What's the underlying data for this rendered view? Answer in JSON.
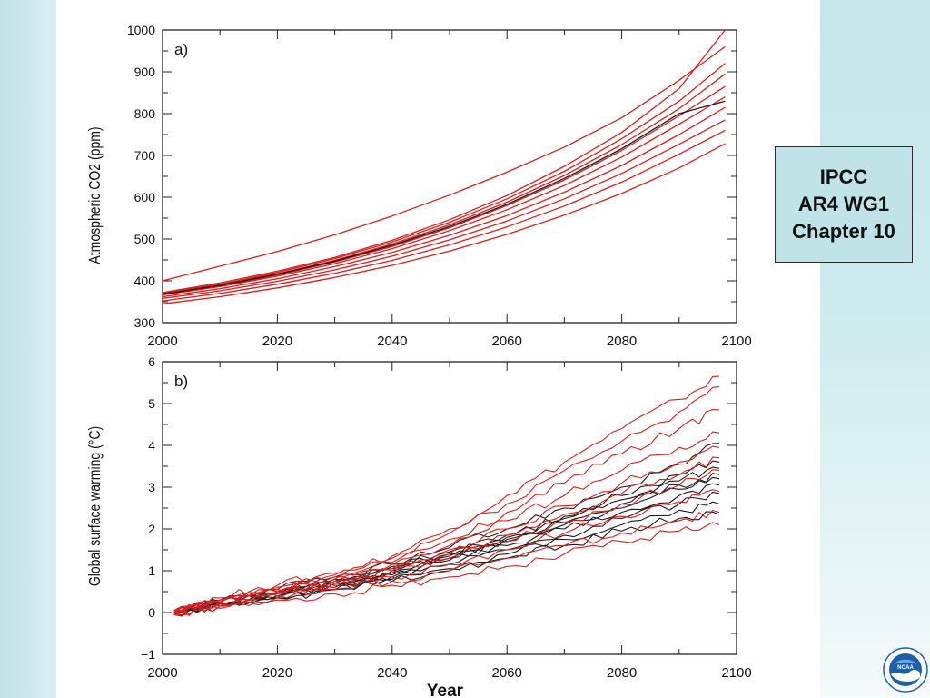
{
  "caption": {
    "line1": "IPCC",
    "line2": "AR4 WG1",
    "line3": "Chapter 10"
  },
  "logo": {
    "text": "NOAA"
  },
  "colors": {
    "red_series": "#d81e1e",
    "black_series": "#1a1a1a",
    "caption_bg": "#bfe3e6"
  },
  "chart_data": [
    {
      "type": "line",
      "panel_label": "a)",
      "ylabel": "Atmospheric CO2 (ppm)",
      "xlabel": "",
      "xlim": [
        2000,
        2100
      ],
      "ylim": [
        300,
        1000
      ],
      "x_ticks": [
        "2000",
        "2020",
        "2040",
        "2060",
        "2080",
        "2100"
      ],
      "y_ticks": [
        "300",
        "400",
        "500",
        "600",
        "700",
        "800",
        "900",
        "1000"
      ],
      "x": [
        2000,
        2010,
        2020,
        2030,
        2040,
        2050,
        2060,
        2070,
        2080,
        2090,
        2098
      ],
      "series": [
        {
          "color": "red",
          "values": [
            400,
            435,
            470,
            510,
            555,
            605,
            660,
            720,
            790,
            880,
            960
          ]
        },
        {
          "color": "red",
          "values": [
            372,
            395,
            423,
            456,
            497,
            546,
            604,
            674,
            755,
            860,
            1000
          ]
        },
        {
          "color": "red",
          "values": [
            370,
            392,
            420,
            453,
            493,
            540,
            596,
            662,
            740,
            830,
            920
          ]
        },
        {
          "color": "red",
          "values": [
            368,
            390,
            417,
            449,
            488,
            534,
            588,
            652,
            726,
            812,
            895
          ]
        },
        {
          "color": "red",
          "values": [
            367,
            388,
            414,
            445,
            482,
            527,
            580,
            641,
            712,
            795,
            865
          ]
        },
        {
          "color": "red",
          "values": [
            366,
            386,
            411,
            441,
            477,
            520,
            570,
            628,
            696,
            775,
            840
          ]
        },
        {
          "color": "red",
          "values": [
            362,
            381,
            405,
            434,
            468,
            509,
            556,
            612,
            676,
            750,
            815
          ]
        },
        {
          "color": "red",
          "values": [
            358,
            376,
            399,
            426,
            459,
            498,
            543,
            596,
            657,
            727,
            785
          ]
        },
        {
          "color": "red",
          "values": [
            352,
            370,
            392,
            418,
            449,
            486,
            529,
            579,
            636,
            703,
            760
          ]
        },
        {
          "color": "red",
          "values": [
            345,
            362,
            383,
            408,
            437,
            471,
            511,
            557,
            609,
            670,
            728
          ]
        },
        {
          "color": "black",
          "values": [
            368,
            389,
            416,
            447,
            485,
            530,
            583,
            645,
            716,
            800,
            830
          ]
        }
      ]
    },
    {
      "type": "line",
      "panel_label": "b)",
      "ylabel": "Global surface warming (°C)",
      "xlabel": "Year",
      "xlim": [
        2000,
        2100
      ],
      "ylim": [
        -1,
        6
      ],
      "x_ticks": [
        "2000",
        "2020",
        "2040",
        "2060",
        "2080",
        "2100"
      ],
      "y_ticks": [
        "−1",
        "0",
        "1",
        "2",
        "3",
        "4",
        "5",
        "6"
      ],
      "x": [
        2002,
        2010,
        2020,
        2030,
        2040,
        2050,
        2060,
        2070,
        2080,
        2090,
        2097
      ],
      "series": [
        {
          "color": "red",
          "values": [
            0.05,
            0.35,
            0.65,
            0.95,
            1.35,
            2.0,
            2.8,
            3.6,
            4.4,
            5.1,
            5.65
          ]
        },
        {
          "color": "red",
          "values": [
            0.0,
            0.3,
            0.6,
            0.9,
            1.3,
            1.9,
            2.6,
            3.4,
            4.1,
            4.8,
            5.4
          ]
        },
        {
          "color": "red",
          "values": [
            0.05,
            0.3,
            0.55,
            0.85,
            1.2,
            1.75,
            2.4,
            3.1,
            3.8,
            4.4,
            4.85
          ]
        },
        {
          "color": "red",
          "values": [
            0.0,
            0.25,
            0.5,
            0.8,
            1.15,
            1.6,
            2.2,
            2.8,
            3.4,
            3.95,
            4.3
          ]
        },
        {
          "color": "red",
          "values": [
            0.0,
            0.25,
            0.5,
            0.75,
            1.05,
            1.5,
            2.0,
            2.55,
            3.1,
            3.6,
            3.95
          ]
        },
        {
          "color": "red",
          "values": [
            0.05,
            0.25,
            0.45,
            0.7,
            1.0,
            1.4,
            1.85,
            2.35,
            2.85,
            3.3,
            3.7
          ]
        },
        {
          "color": "red",
          "values": [
            -0.05,
            0.2,
            0.45,
            0.7,
            0.95,
            1.3,
            1.7,
            2.15,
            2.6,
            3.05,
            3.4
          ]
        },
        {
          "color": "red",
          "values": [
            0.0,
            0.2,
            0.4,
            0.6,
            0.85,
            1.15,
            1.5,
            1.9,
            2.3,
            2.65,
            2.9
          ]
        },
        {
          "color": "red",
          "values": [
            0.0,
            0.15,
            0.35,
            0.55,
            0.75,
            1.0,
            1.3,
            1.6,
            1.9,
            2.2,
            2.4
          ]
        },
        {
          "color": "red",
          "values": [
            -0.05,
            0.1,
            0.3,
            0.45,
            0.65,
            0.85,
            1.1,
            1.4,
            1.7,
            1.95,
            2.1
          ]
        },
        {
          "color": "black",
          "values": [
            0.05,
            0.3,
            0.55,
            0.85,
            1.15,
            1.55,
            2.0,
            2.5,
            3.0,
            3.55,
            4.05
          ]
        },
        {
          "color": "black",
          "values": [
            0.0,
            0.25,
            0.5,
            0.8,
            1.1,
            1.45,
            1.85,
            2.3,
            2.8,
            3.3,
            3.6
          ]
        },
        {
          "color": "black",
          "values": [
            0.0,
            0.25,
            0.5,
            0.75,
            1.05,
            1.4,
            1.8,
            2.25,
            2.7,
            3.15,
            3.45
          ]
        },
        {
          "color": "black",
          "values": [
            0.05,
            0.25,
            0.45,
            0.7,
            1.0,
            1.35,
            1.75,
            2.15,
            2.6,
            3.05,
            3.3
          ]
        },
        {
          "color": "black",
          "values": [
            -0.05,
            0.2,
            0.45,
            0.7,
            0.95,
            1.3,
            1.7,
            2.1,
            2.5,
            2.95,
            3.2
          ]
        },
        {
          "color": "black",
          "values": [
            0.0,
            0.2,
            0.4,
            0.65,
            0.9,
            1.25,
            1.6,
            2.0,
            2.4,
            2.8,
            3.05
          ]
        },
        {
          "color": "black",
          "values": [
            0.0,
            0.2,
            0.4,
            0.6,
            0.85,
            1.15,
            1.5,
            1.85,
            2.25,
            2.6,
            2.85
          ]
        },
        {
          "color": "black",
          "values": [
            -0.05,
            0.15,
            0.35,
            0.55,
            0.8,
            1.05,
            1.4,
            1.75,
            2.1,
            2.45,
            2.6
          ]
        },
        {
          "color": "black",
          "values": [
            0.0,
            0.15,
            0.35,
            0.55,
            0.75,
            1.0,
            1.3,
            1.6,
            1.95,
            2.25,
            2.35
          ]
        }
      ]
    }
  ]
}
